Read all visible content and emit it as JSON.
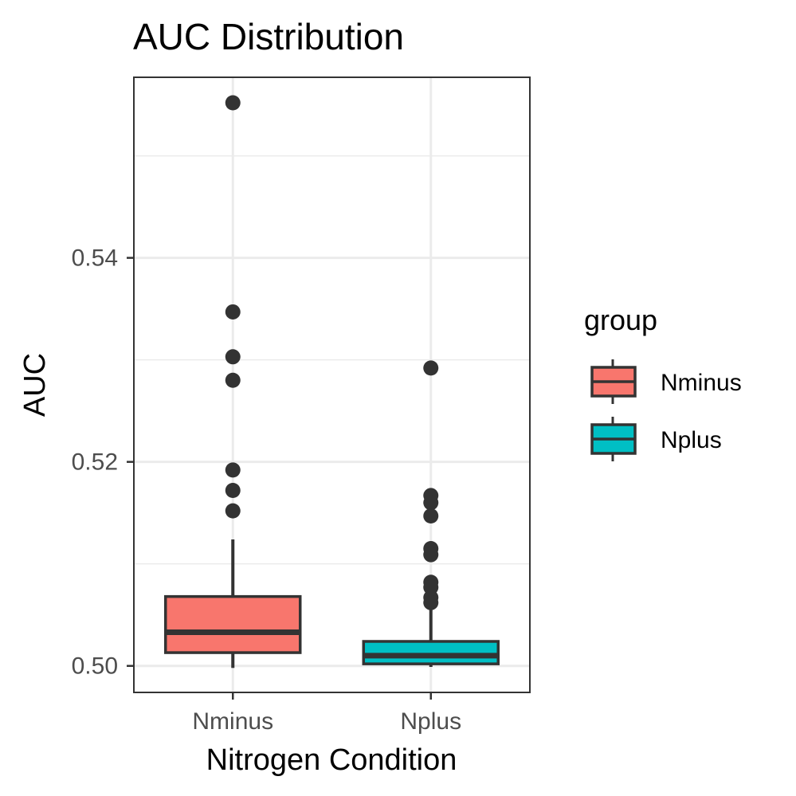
{
  "chart_data": {
    "type": "boxplot",
    "title": "AUC Distribution",
    "xlabel": "Nitrogen Condition",
    "ylabel": "AUC",
    "categories": [
      "Nminus",
      "Nplus"
    ],
    "ylim": [
      0.4974,
      0.5577
    ],
    "yticks": [
      0.5,
      0.52,
      0.54
    ],
    "ytick_labels": [
      "0.50",
      "0.52",
      "0.54"
    ],
    "grid": true,
    "legend": {
      "title": "group",
      "position": "right",
      "entries": [
        "Nminus",
        "Nplus"
      ]
    },
    "series": [
      {
        "name": "Nminus",
        "color": "#F8766D",
        "min": 0.4998,
        "q1": 0.5013,
        "median": 0.5033,
        "q3": 0.5068,
        "max": 0.5124,
        "outliers": [
          0.5552,
          0.5347,
          0.5303,
          0.528,
          0.5192,
          0.5172,
          0.5152
        ]
      },
      {
        "name": "Nplus",
        "color": "#00BFC4",
        "min": 0.4999,
        "q1": 0.5002,
        "median": 0.501,
        "q3": 0.5024,
        "max": 0.5057,
        "outliers": [
          0.5292,
          0.5167,
          0.516,
          0.5147,
          0.5115,
          0.5109,
          0.5082,
          0.5077,
          0.5067,
          0.5062
        ]
      }
    ]
  }
}
